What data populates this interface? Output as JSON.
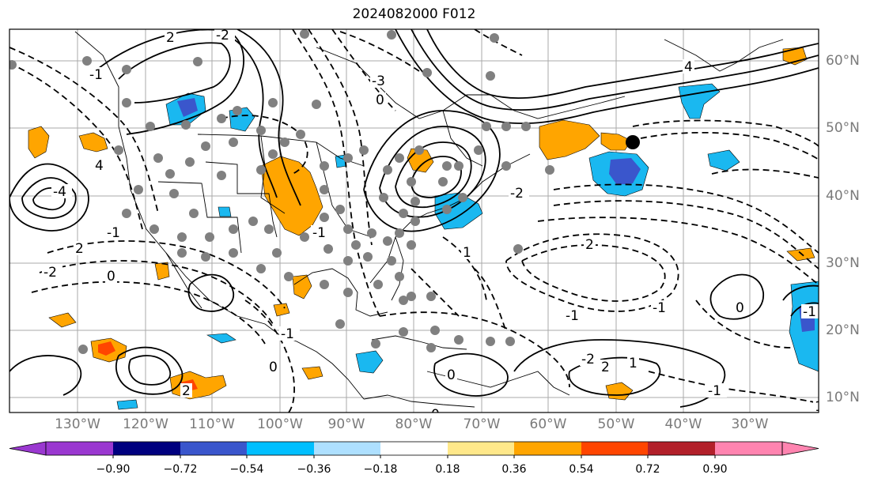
{
  "title": "2024082000 F012",
  "lat_labels": [
    "60°N",
    "50°N",
    "40°N",
    "30°N",
    "20°N",
    "10°N"
  ],
  "lon_labels": [
    "130°W",
    "120°W",
    "110°W",
    "100°W",
    "90°W",
    "80°W",
    "70°W",
    "60°W",
    "50°W",
    "40°W",
    "30°W"
  ],
  "contour_labels": [
    "2",
    "-2",
    "-1",
    "4",
    "-4",
    "-3",
    "0",
    "-1",
    "2",
    "-2",
    "0",
    "-1",
    "0",
    "1",
    "-2",
    "-1",
    "2",
    "-1",
    "0",
    "0",
    "2",
    "1",
    "-2",
    "0",
    "-1",
    "1",
    "4",
    "-1",
    "2",
    "-1"
  ],
  "colorbar": {
    "ticks": [
      "−0.90",
      "−0.72",
      "−0.54",
      "−0.36",
      "−0.18",
      "0.18",
      "0.36",
      "0.54",
      "0.72",
      "0.90"
    ],
    "colors": [
      "#9a38d0",
      "#00007f",
      "#3a56cc",
      "#00bfff",
      "#aee0ff",
      "#ffffff",
      "#ffe88a",
      "#ffa500",
      "#ff4500",
      "#b2202a",
      "#ff84b0"
    ]
  },
  "colors": {
    "positive_fill": "#ffa500",
    "negative_fill": "#1ab8f0",
    "strong_negative_fill": "#3a56cc",
    "strong_positive_fill": "#ff4500",
    "station_dot": "#808080",
    "gridline": "#aaaaaa"
  }
}
